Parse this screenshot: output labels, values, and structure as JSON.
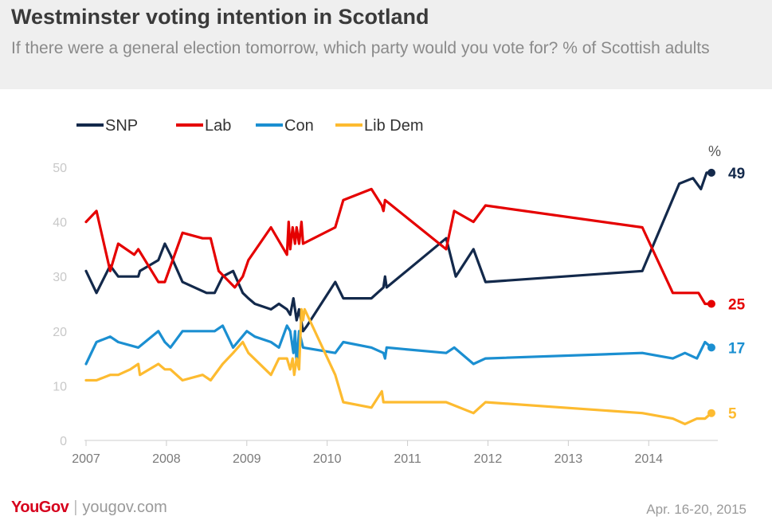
{
  "header": {
    "title": "Westminster voting intention in Scotland",
    "subtitle": "If there were a general election tomorrow, which party would you vote for? % of Scottish adults"
  },
  "footer": {
    "brand": "YouGov",
    "separator": "|",
    "url": "yougov.com",
    "date": "Apr. 16-20, 2015"
  },
  "chart_data": {
    "type": "line",
    "title": "Westminster voting intention in Scotland",
    "subtitle": "If there were a general election tomorrow, which party would you vote for? % of Scottish adults",
    "unit_label": "%",
    "xlim": [
      2007,
      2014.82
    ],
    "ylim": [
      0,
      50
    ],
    "x_ticks": [
      2007,
      2008,
      2009,
      2010,
      2011,
      2012,
      2013,
      2014
    ],
    "y_ticks": [
      0,
      10,
      20,
      30,
      40,
      50
    ],
    "legend_position": "top-left",
    "grid": false,
    "series": [
      {
        "name": "SNP",
        "color": "#13294b",
        "end_label": "49",
        "points": [
          [
            2007.0,
            31
          ],
          [
            2007.13,
            27
          ],
          [
            2007.3,
            32
          ],
          [
            2007.4,
            30
          ],
          [
            2007.55,
            30
          ],
          [
            2007.65,
            30
          ],
          [
            2007.67,
            31
          ],
          [
            2007.9,
            33
          ],
          [
            2007.98,
            36
          ],
          [
            2008.05,
            34
          ],
          [
            2008.2,
            29
          ],
          [
            2008.5,
            27
          ],
          [
            2008.6,
            27
          ],
          [
            2008.7,
            30
          ],
          [
            2008.83,
            31
          ],
          [
            2008.95,
            27
          ],
          [
            2009.02,
            26
          ],
          [
            2009.1,
            25
          ],
          [
            2009.3,
            24
          ],
          [
            2009.4,
            25
          ],
          [
            2009.5,
            24
          ],
          [
            2009.54,
            23
          ],
          [
            2009.58,
            26
          ],
          [
            2009.62,
            22
          ],
          [
            2009.65,
            24
          ],
          [
            2009.7,
            20
          ],
          [
            2009.75,
            21
          ],
          [
            2010.1,
            29
          ],
          [
            2010.2,
            26
          ],
          [
            2010.55,
            26
          ],
          [
            2010.7,
            28
          ],
          [
            2010.72,
            30
          ],
          [
            2010.74,
            28
          ],
          [
            2011.48,
            37
          ],
          [
            2011.6,
            30
          ],
          [
            2011.82,
            35
          ],
          [
            2011.97,
            29
          ],
          [
            2013.92,
            31
          ],
          [
            2014.38,
            47
          ],
          [
            2014.55,
            48
          ],
          [
            2014.65,
            46
          ],
          [
            2014.72,
            49
          ],
          [
            2014.78,
            49
          ]
        ]
      },
      {
        "name": "Lab",
        "color": "#e50000",
        "end_label": "25",
        "points": [
          [
            2007.0,
            40
          ],
          [
            2007.13,
            42
          ],
          [
            2007.3,
            31
          ],
          [
            2007.4,
            36
          ],
          [
            2007.6,
            34
          ],
          [
            2007.65,
            35
          ],
          [
            2007.9,
            29
          ],
          [
            2007.98,
            29
          ],
          [
            2008.2,
            38
          ],
          [
            2008.45,
            37
          ],
          [
            2008.55,
            37
          ],
          [
            2008.65,
            31
          ],
          [
            2008.85,
            28
          ],
          [
            2008.95,
            30
          ],
          [
            2009.02,
            33
          ],
          [
            2009.3,
            39
          ],
          [
            2009.5,
            34
          ],
          [
            2009.52,
            40
          ],
          [
            2009.54,
            35
          ],
          [
            2009.57,
            39
          ],
          [
            2009.6,
            36
          ],
          [
            2009.62,
            39
          ],
          [
            2009.65,
            36
          ],
          [
            2009.68,
            40
          ],
          [
            2009.7,
            36
          ],
          [
            2010.1,
            39
          ],
          [
            2010.2,
            44
          ],
          [
            2010.55,
            46
          ],
          [
            2010.68,
            43
          ],
          [
            2010.7,
            42
          ],
          [
            2010.72,
            44
          ],
          [
            2011.48,
            35
          ],
          [
            2011.58,
            42
          ],
          [
            2011.82,
            40
          ],
          [
            2011.97,
            43
          ],
          [
            2013.92,
            39
          ],
          [
            2014.3,
            27
          ],
          [
            2014.62,
            27
          ],
          [
            2014.7,
            25
          ],
          [
            2014.78,
            25
          ]
        ]
      },
      {
        "name": "Con",
        "color": "#1b8fd1",
        "end_label": "17",
        "points": [
          [
            2007.0,
            14
          ],
          [
            2007.13,
            18
          ],
          [
            2007.3,
            19
          ],
          [
            2007.4,
            18
          ],
          [
            2007.65,
            17
          ],
          [
            2007.9,
            20
          ],
          [
            2007.98,
            18
          ],
          [
            2008.05,
            17
          ],
          [
            2008.2,
            20
          ],
          [
            2008.6,
            20
          ],
          [
            2008.7,
            21
          ],
          [
            2008.83,
            17
          ],
          [
            2009.0,
            20
          ],
          [
            2009.1,
            19
          ],
          [
            2009.3,
            18
          ],
          [
            2009.4,
            17
          ],
          [
            2009.5,
            21
          ],
          [
            2009.54,
            20
          ],
          [
            2009.58,
            16
          ],
          [
            2009.6,
            20
          ],
          [
            2009.62,
            14
          ],
          [
            2009.65,
            20
          ],
          [
            2009.7,
            17
          ],
          [
            2010.1,
            16
          ],
          [
            2010.2,
            18
          ],
          [
            2010.55,
            17
          ],
          [
            2010.7,
            16
          ],
          [
            2010.72,
            15
          ],
          [
            2010.74,
            17
          ],
          [
            2011.48,
            16
          ],
          [
            2011.58,
            17
          ],
          [
            2011.82,
            14
          ],
          [
            2011.97,
            15
          ],
          [
            2013.92,
            16
          ],
          [
            2014.3,
            15
          ],
          [
            2014.45,
            16
          ],
          [
            2014.6,
            15
          ],
          [
            2014.7,
            18
          ],
          [
            2014.78,
            17
          ]
        ]
      },
      {
        "name": "Lib Dem",
        "color": "#fdbb30",
        "end_label": "5",
        "points": [
          [
            2007.0,
            11
          ],
          [
            2007.13,
            11
          ],
          [
            2007.3,
            12
          ],
          [
            2007.4,
            12
          ],
          [
            2007.55,
            13
          ],
          [
            2007.65,
            14
          ],
          [
            2007.67,
            12
          ],
          [
            2007.9,
            14
          ],
          [
            2007.98,
            13
          ],
          [
            2008.05,
            13
          ],
          [
            2008.2,
            11
          ],
          [
            2008.45,
            12
          ],
          [
            2008.55,
            11
          ],
          [
            2008.7,
            14
          ],
          [
            2008.83,
            16
          ],
          [
            2008.95,
            18
          ],
          [
            2009.02,
            16
          ],
          [
            2009.3,
            12
          ],
          [
            2009.4,
            15
          ],
          [
            2009.5,
            15
          ],
          [
            2009.54,
            13
          ],
          [
            2009.57,
            15
          ],
          [
            2009.59,
            12
          ],
          [
            2009.62,
            15
          ],
          [
            2009.65,
            13
          ],
          [
            2009.68,
            24
          ],
          [
            2009.7,
            22
          ],
          [
            2009.72,
            24
          ],
          [
            2010.1,
            12
          ],
          [
            2010.2,
            7
          ],
          [
            2010.55,
            6
          ],
          [
            2010.68,
            9
          ],
          [
            2010.7,
            7
          ],
          [
            2011.48,
            7
          ],
          [
            2011.82,
            5
          ],
          [
            2011.97,
            7
          ],
          [
            2013.92,
            5
          ],
          [
            2014.3,
            4
          ],
          [
            2014.45,
            3
          ],
          [
            2014.6,
            4
          ],
          [
            2014.7,
            4
          ],
          [
            2014.78,
            5
          ]
        ]
      }
    ]
  }
}
